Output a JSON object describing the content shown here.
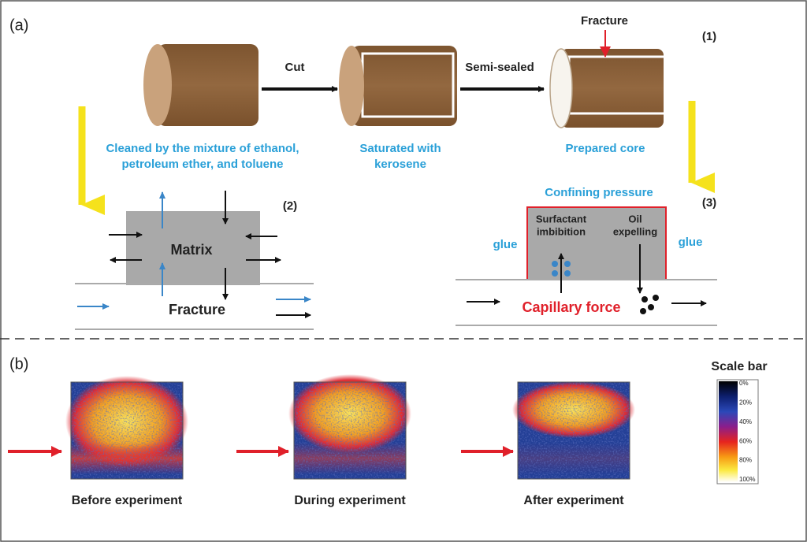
{
  "panel_a": {
    "label": "(a)",
    "step1": {
      "label": "(1)",
      "cut": "Cut",
      "semi_sealed": "Semi-sealed",
      "fracture": "Fracture",
      "cleaned": [
        "Cleaned by the mixture of ethanol,",
        "petroleum  ether, and toluene"
      ],
      "saturated": [
        "Saturated with",
        "kerosene"
      ],
      "prepared": "Prepared core"
    },
    "step2": {
      "label": "(2)",
      "matrix": "Matrix",
      "fracture": "Fracture"
    },
    "step3": {
      "label": "(3)",
      "confining": "Confining pressure",
      "surfactant": [
        "Surfactant",
        "imbibition"
      ],
      "oil": [
        "Oil",
        "expelling"
      ],
      "glue_left": "glue",
      "glue_right": "glue",
      "capillary": "Capillary force"
    }
  },
  "panel_b": {
    "label": "(b)",
    "captions": [
      "Before experiment",
      "During experiment",
      "After experiment"
    ],
    "scale_bar": {
      "title": "Scale bar",
      "ticks": [
        "0%",
        "20%",
        "40%",
        "60%",
        "80%",
        "100%"
      ]
    }
  }
}
